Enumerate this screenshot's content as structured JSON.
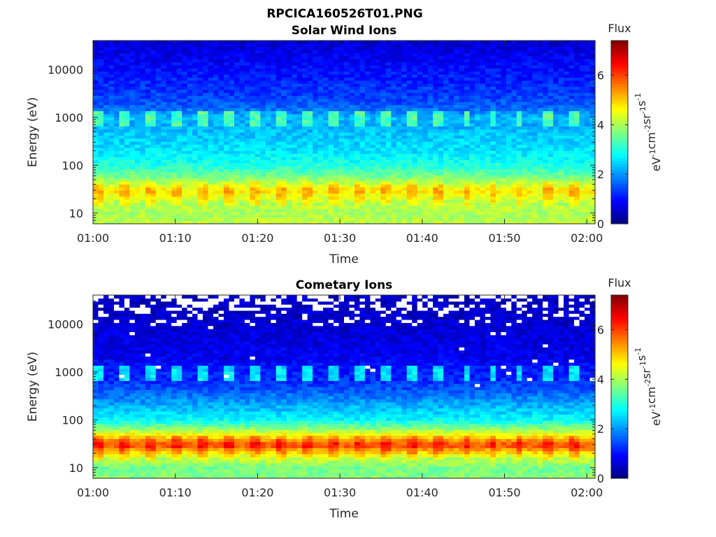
{
  "figure": {
    "title": "RPCICA160526T01.PNG"
  },
  "chart_data": [
    {
      "type": "heatmap",
      "title": "Solar Wind Ions",
      "xlabel": "Time",
      "ylabel": "Energy (eV)",
      "x_ticks": [
        "01:00",
        "01:10",
        "01:20",
        "01:30",
        "01:40",
        "01:50",
        "02:00"
      ],
      "x_range": [
        "01:00",
        "02:01"
      ],
      "y_scale": "log",
      "y_ticks": [
        10,
        100,
        1000,
        10000
      ],
      "y_tick_labels": [
        "10",
        "100",
        "1000",
        "10000"
      ],
      "y_range": [
        6,
        40000
      ],
      "colorbar": {
        "title": "Flux",
        "unit_label": "eV-1cm-2sr-1s-1",
        "unit_base": [
          "eV",
          "cm",
          "sr",
          "s"
        ],
        "unit_exp": [
          "-1",
          "-2",
          "-1",
          "-1"
        ],
        "ticks": [
          0,
          2,
          4,
          6
        ],
        "range": [
          0,
          7.4
        ],
        "colormap": "jet"
      },
      "flux_profile": {
        "energy_eV": [
          6,
          10,
          15,
          22,
          30,
          40,
          60,
          100,
          200,
          400,
          700,
          1000,
          1400,
          2000,
          5000,
          10000,
          20000,
          40000
        ],
        "flux": [
          4.2,
          4.0,
          4.2,
          4.6,
          5.0,
          4.4,
          3.6,
          3.0,
          2.6,
          2.4,
          2.2,
          2.3,
          1.8,
          1.5,
          1.2,
          1.0,
          0.8,
          0.6
        ]
      },
      "periodic_enhancement": {
        "energy_range_eV": [
          650,
          1300
        ],
        "flux": 3.3,
        "period_minutes": 3.2
      },
      "gaps": false
    },
    {
      "type": "heatmap",
      "title": "Cometary Ions",
      "xlabel": "Time",
      "ylabel": "Energy (eV)",
      "x_ticks": [
        "01:00",
        "01:10",
        "01:20",
        "01:30",
        "01:40",
        "01:50",
        "02:00"
      ],
      "x_range": [
        "01:00",
        "02:01"
      ],
      "y_scale": "log",
      "y_ticks": [
        10,
        100,
        1000,
        10000
      ],
      "y_tick_labels": [
        "10",
        "100",
        "1000",
        "10000"
      ],
      "y_range": [
        6,
        40000
      ],
      "colorbar": {
        "title": "Flux",
        "unit_label": "eV-1cm-2sr-1s-1",
        "unit_base": [
          "eV",
          "cm",
          "sr",
          "s"
        ],
        "unit_exp": [
          "-1",
          "-2",
          "-1",
          "-1"
        ],
        "ticks": [
          0,
          2,
          4,
          6
        ],
        "range": [
          0,
          7.4
        ],
        "colormap": "jet"
      },
      "flux_profile": {
        "energy_eV": [
          6,
          10,
          15,
          22,
          30,
          40,
          60,
          100,
          200,
          400,
          700,
          1000,
          1400,
          2000,
          5000,
          10000,
          20000,
          40000
        ],
        "flux": [
          3.8,
          3.6,
          4.2,
          5.2,
          6.2,
          5.4,
          4.0,
          2.8,
          2.2,
          1.6,
          1.2,
          1.1,
          1.0,
          0.8,
          0.7,
          0.6,
          0.5,
          0.5
        ]
      },
      "periodic_enhancement": {
        "energy_range_eV": [
          650,
          1300
        ],
        "flux": 2.6,
        "period_minutes": 3.2
      },
      "gaps": true
    }
  ]
}
